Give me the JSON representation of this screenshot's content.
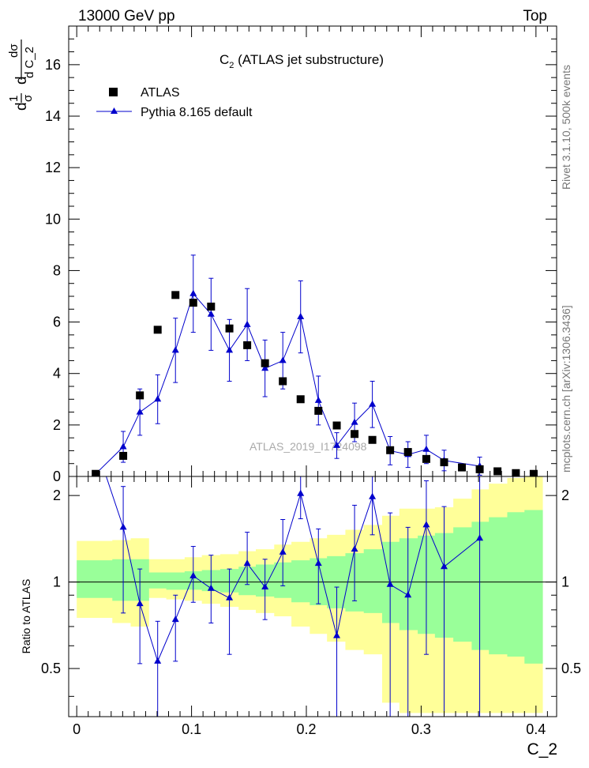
{
  "header": {
    "left": "13000 GeV pp",
    "right": "Top"
  },
  "side_labels": {
    "rivet": "Rivet 3.1.10,  500k events",
    "mcplots": "mcplots.cern.ch [arXiv:1306.3436]"
  },
  "chart_data": [
    {
      "type": "scatter",
      "title": "C",
      "title_subscript": "2",
      "title_suffix": " (ATLAS jet substructure)",
      "ylabel_parts": [
        "d",
        "1",
        "σ",
        "d",
        "dσ",
        "d C_2"
      ],
      "watermark": "ATLAS_2019_I1724098",
      "xlim": [
        -0.007,
        0.418
      ],
      "ylim": [
        0,
        17.5
      ],
      "y_ticks": [
        0,
        2,
        4,
        6,
        8,
        10,
        12,
        14,
        16
      ],
      "legend_placement": "top-left",
      "series": [
        {
          "name": "ATLAS",
          "marker": "square",
          "color": "#000000",
          "x": [
            0.0165,
            0.0405,
            0.055,
            0.0705,
            0.086,
            0.1015,
            0.117,
            0.133,
            0.1485,
            0.164,
            0.1795,
            0.195,
            0.2105,
            0.2265,
            0.242,
            0.2575,
            0.273,
            0.2885,
            0.3045,
            0.32,
            0.3355,
            0.351,
            0.3665,
            0.3825,
            0.398
          ],
          "y": [
            0.1,
            0.8,
            3.15,
            5.7,
            7.05,
            6.75,
            6.6,
            5.75,
            5.1,
            4.4,
            3.7,
            3.0,
            2.55,
            1.98,
            1.65,
            1.42,
            1.02,
            0.95,
            0.68,
            0.55,
            0.35,
            0.28,
            0.2,
            0.13,
            0.1
          ]
        },
        {
          "name": "Pythia 8.165 default",
          "marker": "triangle",
          "color": "#0000cc",
          "x": [
            0.0165,
            0.0405,
            0.055,
            0.0705,
            0.086,
            0.1015,
            0.117,
            0.133,
            0.1485,
            0.164,
            0.1795,
            0.195,
            0.2105,
            0.2265,
            0.242,
            0.2575,
            0.273,
            0.2885,
            0.3045,
            0.32,
            0.351
          ],
          "y": [
            0.1,
            1.15,
            2.5,
            3.0,
            4.9,
            7.1,
            6.3,
            4.9,
            5.9,
            4.2,
            4.5,
            6.2,
            2.95,
            1.2,
            2.1,
            2.8,
            1.0,
            0.85,
            1.05,
            0.62,
            0.4
          ],
          "yerr": [
            0,
            0.6,
            0.9,
            0.95,
            1.25,
            1.5,
            1.4,
            1.2,
            1.4,
            1.1,
            1.1,
            1.4,
            0.95,
            0.5,
            0.75,
            0.9,
            0.55,
            0.5,
            0.55,
            0.4,
            0.35
          ]
        }
      ]
    },
    {
      "type": "scatter",
      "ylabel": "Ratio to ATLAS",
      "xlabel": "C_2",
      "xlim": [
        -0.007,
        0.418
      ],
      "ylim": [
        0.34,
        2.33
      ],
      "y_ticks": [
        0.5,
        1,
        2
      ],
      "x_ticks": [
        0,
        0.1,
        0.2,
        0.3,
        0.4
      ],
      "x_tick_labels": [
        "0",
        "0.1",
        "0.2",
        "0.3",
        "0.4"
      ],
      "reference_line": 1,
      "bands": {
        "x_edges": [
          0.0,
          0.031,
          0.047,
          0.063,
          0.078,
          0.094,
          0.109,
          0.125,
          0.141,
          0.156,
          0.172,
          0.187,
          0.203,
          0.218,
          0.234,
          0.25,
          0.266,
          0.281,
          0.297,
          0.312,
          0.328,
          0.344,
          0.359,
          0.375,
          0.39,
          0.406
        ],
        "yellow_low": [
          0.75,
          0.72,
          0.7,
          0.88,
          0.87,
          0.86,
          0.84,
          0.82,
          0.8,
          0.78,
          0.76,
          0.7,
          0.66,
          0.62,
          0.58,
          0.56,
          0.38,
          0.35,
          0.35,
          0.35,
          0.35,
          0.35,
          0.35,
          0.35,
          0.35
        ],
        "yellow_high": [
          1.39,
          1.4,
          1.42,
          1.2,
          1.2,
          1.22,
          1.24,
          1.25,
          1.28,
          1.3,
          1.35,
          1.38,
          1.42,
          1.46,
          1.52,
          1.58,
          1.7,
          1.8,
          1.8,
          1.82,
          1.95,
          2.1,
          2.2,
          2.3,
          2.4
        ],
        "green_low": [
          0.88,
          0.86,
          0.86,
          0.95,
          0.94,
          0.94,
          0.93,
          0.92,
          0.9,
          0.89,
          0.88,
          0.85,
          0.83,
          0.81,
          0.79,
          0.78,
          0.72,
          0.68,
          0.66,
          0.64,
          0.62,
          0.58,
          0.56,
          0.55,
          0.52
        ],
        "green_high": [
          1.19,
          1.2,
          1.2,
          1.08,
          1.08,
          1.09,
          1.1,
          1.11,
          1.13,
          1.15,
          1.17,
          1.19,
          1.21,
          1.23,
          1.26,
          1.3,
          1.38,
          1.42,
          1.45,
          1.48,
          1.55,
          1.62,
          1.68,
          1.75,
          1.78
        ]
      },
      "series": [
        {
          "name": "Pythia 8.165 default",
          "color": "#0000cc",
          "x": [
            0.0405,
            0.055,
            0.0705,
            0.086,
            0.1015,
            0.117,
            0.133,
            0.1485,
            0.164,
            0.1795,
            0.195,
            0.2105,
            0.2265,
            0.242,
            0.2575,
            0.273,
            0.2885,
            0.3045,
            0.32,
            0.351
          ],
          "y": [
            1.55,
            0.84,
            0.53,
            0.74,
            1.05,
            0.95,
            0.88,
            1.16,
            0.96,
            1.27,
            2.03,
            1.16,
            0.65,
            1.3,
            1.98,
            0.98,
            0.9,
            1.58,
            1.13,
            1.42
          ],
          "ylow": [
            0.78,
            0.52,
            0.34,
            0.53,
            0.85,
            0.72,
            0.56,
            0.98,
            0.74,
            0.97,
            1.66,
            0.84,
            0.34,
            0.86,
            1.46,
            0.34,
            0.34,
            0.56,
            0.34,
            0.34
          ],
          "yhigh": [
            2.15,
            1.11,
            0.73,
            0.9,
            1.33,
            1.24,
            1.11,
            1.49,
            1.2,
            1.65,
            2.4,
            1.53,
            0.96,
            1.85,
            2.4,
            1.74,
            1.55,
            2.25,
            1.83,
            2.4
          ]
        }
      ]
    }
  ]
}
